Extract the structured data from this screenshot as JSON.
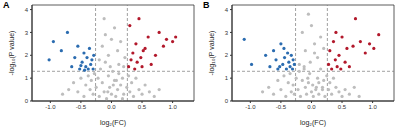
{
  "chart_data": [
    {
      "type": "scatter",
      "title": "A",
      "x_label": "log₂(FC)",
      "y_label": "-log₁₀(P value)",
      "xlim": [
        -1.3,
        1.35
      ],
      "ylim": [
        0,
        4.2
      ],
      "xticks": [
        {
          "value": -1,
          "label": "-1.0"
        },
        {
          "value": -0.5,
          "label": "-0.5"
        },
        {
          "value": 0,
          "label": "0.0"
        },
        {
          "value": 0.5,
          "label": "0.5"
        },
        {
          "value": 1,
          "label": "1.0"
        }
      ],
      "yticks": [
        0,
        1,
        2,
        3,
        4
      ],
      "reference_lines": {
        "x": [
          -0.26,
          0.26
        ],
        "y": [
          1.3
        ]
      },
      "series": [
        {
          "color": "#bdbdbd",
          "marker": "circle",
          "x": [
            -0.8,
            -0.7,
            -0.62,
            -0.55,
            -0.5,
            -0.45,
            -0.42,
            -0.38,
            -0.35,
            -0.33,
            -0.3,
            -0.28,
            -0.25,
            -0.22,
            -0.2,
            -0.18,
            -0.15,
            -0.12,
            -0.1,
            -0.08,
            -0.05,
            -0.03,
            0,
            0.02,
            0.05,
            0.07,
            0.1,
            0.12,
            0.15,
            0.18,
            0.2,
            0.22,
            0.25,
            0.28,
            0.3,
            0.33,
            0.36,
            0.4,
            0.45,
            0.5,
            0.55,
            0.62,
            0.7,
            0.78,
            -0.15,
            -0.1,
            -0.05,
            0.05,
            0.1,
            0.15,
            -0.2,
            0.2,
            -0.12,
            0,
            0.08,
            -0.06,
            0.12,
            -0.02,
            0.03,
            0.18
          ],
          "y": [
            0.3,
            0.5,
            0.8,
            0.4,
            1.0,
            0.2,
            0.7,
            1.1,
            0.5,
            0.9,
            0.3,
            1.2,
            0.6,
            1.0,
            0.2,
            1.4,
            0.8,
            0.4,
            1.7,
            0.1,
            1.1,
            0.6,
            0.3,
            1.3,
            0.9,
            0.2,
            0.5,
            1.6,
            0.7,
            1.0,
            0.3,
            1.9,
            0.6,
            1.1,
            0.4,
            0.8,
            0.2,
            1.0,
            0.5,
            0.3,
            0.7,
            0.4,
            0.2,
            0.5,
            2.4,
            2.9,
            2.0,
            3.2,
            2.2,
            2.6,
            1.8,
            1.5,
            3.6,
            2.7,
            0.9,
            0.4,
            1.2,
            1.5,
            0.7,
            0.1
          ]
        },
        {
          "color": "#2b6cb0",
          "marker": "circle",
          "x": [
            -1.02,
            -0.95,
            -0.82,
            -0.72,
            -0.65,
            -0.6,
            -0.55,
            -0.52,
            -0.48,
            -0.45,
            -0.42,
            -0.4,
            -0.38,
            -0.36,
            -0.34,
            -0.32,
            -0.3,
            -0.29,
            -0.44,
            -0.5
          ],
          "y": [
            1.8,
            2.6,
            2.2,
            3.0,
            1.5,
            1.9,
            2.4,
            1.4,
            1.7,
            2.1,
            1.5,
            1.9,
            1.4,
            2.3,
            1.6,
            1.8,
            1.4,
            2.0,
            1.35,
            1.55
          ]
        },
        {
          "color": "#b2182b",
          "marker": "circle",
          "x": [
            0.28,
            0.3,
            0.32,
            0.35,
            0.38,
            0.4,
            0.42,
            0.45,
            0.48,
            0.5,
            0.55,
            0.6,
            0.65,
            0.72,
            0.78,
            0.85,
            0.9,
            1.0,
            1.05,
            0.52
          ],
          "y": [
            1.5,
            3.3,
            1.8,
            2.1,
            1.4,
            2.5,
            1.7,
            3.6,
            1.9,
            1.5,
            2.3,
            2.8,
            1.6,
            2.0,
            3.0,
            2.4,
            2.7,
            2.6,
            2.8,
            2.2
          ]
        }
      ]
    },
    {
      "type": "scatter",
      "title": "B",
      "x_label": "log₂(FC)",
      "y_label": "-log₁₀(P value)",
      "xlim": [
        -1.3,
        1.35
      ],
      "ylim": [
        0,
        4.2
      ],
      "xticks": [
        {
          "value": -1,
          "label": "-1.0"
        },
        {
          "value": -0.5,
          "label": "-0.5"
        },
        {
          "value": 0,
          "label": "0.0"
        },
        {
          "value": 0.5,
          "label": "0.5"
        },
        {
          "value": 1,
          "label": "1.0"
        }
      ],
      "yticks": [
        0,
        1,
        2,
        3,
        4
      ],
      "reference_lines": {
        "x": [
          -0.26,
          0.26
        ],
        "y": [
          1.3
        ]
      },
      "series": [
        {
          "color": "#bdbdbd",
          "marker": "circle",
          "x": [
            -0.8,
            -0.7,
            -0.62,
            -0.55,
            -0.5,
            -0.45,
            -0.42,
            -0.38,
            -0.35,
            -0.33,
            -0.3,
            -0.28,
            -0.25,
            -0.22,
            -0.2,
            -0.18,
            -0.15,
            -0.12,
            -0.1,
            -0.08,
            -0.05,
            -0.03,
            0,
            0.02,
            0.05,
            0.07,
            0.1,
            0.12,
            0.15,
            0.18,
            0.2,
            0.22,
            0.25,
            0.28,
            0.3,
            0.33,
            0.36,
            0.4,
            0.45,
            0.5,
            0.55,
            0.62,
            0.7,
            0.78,
            -0.15,
            -0.1,
            -0.05,
            0.05,
            0.1,
            0.15,
            -0.2,
            0.2,
            -0.12,
            0,
            0.08,
            -0.06,
            0.12,
            -0.02,
            0.03,
            0.18
          ],
          "y": [
            0.4,
            0.6,
            0.3,
            0.9,
            0.5,
            1.1,
            0.2,
            0.8,
            1.2,
            0.4,
            0.7,
            0.3,
            1.0,
            0.5,
            1.3,
            0.2,
            0.9,
            1.5,
            0.6,
            0.3,
            0.8,
            1.2,
            0.4,
            0.7,
            2.1,
            0.5,
            1.0,
            0.3,
            1.4,
            0.6,
            0.9,
            0.2,
            1.1,
            0.5,
            0.8,
            0.3,
            1.0,
            0.6,
            0.4,
            0.2,
            0.5,
            0.3,
            0.6,
            0.2,
            3.0,
            2.2,
            3.8,
            2.5,
            1.9,
            2.8,
            1.6,
            2.3,
            1.4,
            3.3,
            0.6,
            1.0,
            0.8,
            1.7,
            0.2,
            0.5
          ]
        },
        {
          "color": "#2b6cb0",
          "marker": "circle",
          "x": [
            -1.1,
            -0.98,
            -0.75,
            -0.68,
            -0.62,
            -0.58,
            -0.55,
            -0.5,
            -0.47,
            -0.44,
            -0.41,
            -0.39,
            -0.37,
            -0.35,
            -0.33,
            -0.31,
            -0.3,
            -0.28,
            -0.45,
            -0.52
          ],
          "y": [
            2.7,
            1.6,
            2.0,
            1.5,
            2.2,
            1.8,
            1.4,
            2.5,
            1.6,
            1.9,
            1.4,
            2.1,
            1.7,
            1.5,
            2.0,
            1.4,
            1.8,
            1.6,
            2.3,
            1.5
          ]
        },
        {
          "color": "#b2182b",
          "marker": "circle",
          "x": [
            0.28,
            0.3,
            0.33,
            0.36,
            0.39,
            0.42,
            0.45,
            0.48,
            0.5,
            0.55,
            0.58,
            0.62,
            0.68,
            0.72,
            0.8,
            0.88,
            0.95,
            1.02,
            1.1,
            0.4
          ],
          "y": [
            1.6,
            2.2,
            1.4,
            2.6,
            1.8,
            1.5,
            2.0,
            1.4,
            2.8,
            1.7,
            2.3,
            1.5,
            2.4,
            3.6,
            2.6,
            2.1,
            2.5,
            2.3,
            2.9,
            3.0
          ]
        }
      ]
    }
  ]
}
